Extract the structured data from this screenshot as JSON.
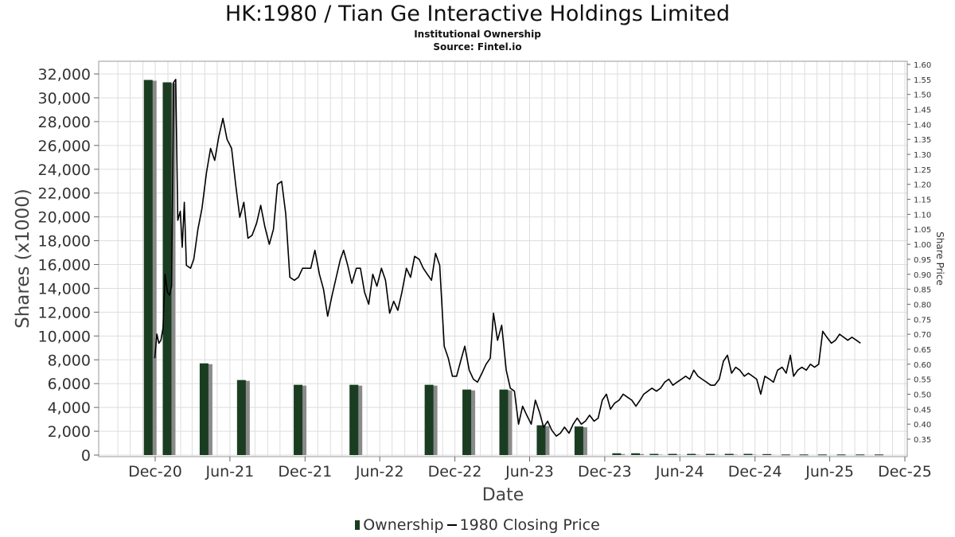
{
  "header": {
    "title": "HK:1980 / Tian Ge Interactive Holdings Limited",
    "subtitle": "Institutional Ownership",
    "source": "Source: Fintel.io"
  },
  "legend": {
    "ownership_label": "Ownership",
    "price_label": "1980 Closing Price"
  },
  "colors": {
    "bar": "#1a3d22",
    "bar_shadow": "#8a8a8a",
    "line": "#000000",
    "grid": "#dddddd"
  },
  "chart_data": {
    "type": "bar+line",
    "xlabel": "Date",
    "ylabel": "Shares (x1000)",
    "y2label": "Share Price",
    "x_ticks": [
      "Dec-20",
      "Jun-21",
      "Dec-21",
      "Jun-22",
      "Dec-22",
      "Jun-23",
      "Dec-23",
      "Jun-24",
      "Dec-24",
      "Jun-25",
      "Dec-25"
    ],
    "ylim": [
      0,
      32000
    ],
    "y_ticks": [
      0,
      2000,
      4000,
      6000,
      8000,
      10000,
      12000,
      14000,
      16000,
      18000,
      20000,
      22000,
      24000,
      26000,
      28000,
      30000,
      32000
    ],
    "y_tick_labels": [
      "0",
      "2,000",
      "4,000",
      "6,000",
      "8,000",
      "10,000",
      "12,000",
      "14,000",
      "16,000",
      "18,000",
      "20,000",
      "22,000",
      "24,000",
      "26,000",
      "28,000",
      "30,000",
      "32,000"
    ],
    "y2lim": [
      0.32,
      1.6
    ],
    "y2_ticks": [
      0.35,
      0.4,
      0.45,
      0.5,
      0.55,
      0.6,
      0.65,
      0.7,
      0.75,
      0.8,
      0.85,
      0.9,
      0.95,
      1.0,
      1.05,
      1.1,
      1.15,
      1.2,
      1.25,
      1.3,
      1.35,
      1.4,
      1.45,
      1.5,
      1.55,
      1.6
    ],
    "y2_tick_labels": [
      "0.35",
      "0.40",
      "0.45",
      "0.50",
      "0.55",
      "0.60",
      "0.65",
      "0.70",
      "0.75",
      "0.80",
      "0.85",
      "0.90",
      "0.95",
      "1.00",
      "1.05",
      "1.10",
      "1.15",
      "1.20",
      "1.25",
      "1.30",
      "1.35",
      "1.40",
      "1.45",
      "1.50",
      "1.55",
      "1.60"
    ],
    "grid": true,
    "legend_position": "bottom-center",
    "series": [
      {
        "name": "Ownership",
        "kind": "bar",
        "points": [
          {
            "date": "2020-11-15",
            "value": 31500
          },
          {
            "date": "2020-12-31",
            "value": 31300
          },
          {
            "date": "2021-03-31",
            "value": 7700
          },
          {
            "date": "2021-06-30",
            "value": 6300
          },
          {
            "date": "2021-11-15",
            "value": 5900
          },
          {
            "date": "2022-03-31",
            "value": 5900
          },
          {
            "date": "2022-09-30",
            "value": 5900
          },
          {
            "date": "2022-12-31",
            "value": 5500
          },
          {
            "date": "2023-03-31",
            "value": 5500
          },
          {
            "date": "2023-06-30",
            "value": 2500
          },
          {
            "date": "2023-09-30",
            "value": 2400
          },
          {
            "date": "2023-12-31",
            "value": 150
          },
          {
            "date": "2024-02-15",
            "value": 150
          },
          {
            "date": "2024-03-31",
            "value": 100
          },
          {
            "date": "2024-05-15",
            "value": 100
          },
          {
            "date": "2024-06-30",
            "value": 100
          },
          {
            "date": "2024-08-15",
            "value": 100
          },
          {
            "date": "2024-09-30",
            "value": 100
          },
          {
            "date": "2024-11-15",
            "value": 100
          },
          {
            "date": "2024-12-31",
            "value": 80
          },
          {
            "date": "2025-02-15",
            "value": 50
          },
          {
            "date": "2025-03-31",
            "value": 50
          },
          {
            "date": "2025-05-15",
            "value": 50
          },
          {
            "date": "2025-06-30",
            "value": 50
          },
          {
            "date": "2025-08-15",
            "value": 50
          },
          {
            "date": "2025-09-30",
            "value": 50
          }
        ]
      },
      {
        "name": "1980 Closing Price",
        "kind": "line",
        "points": [
          {
            "date": "2020-11-30",
            "value": 0.62
          },
          {
            "date": "2020-12-05",
            "value": 0.7
          },
          {
            "date": "2020-12-10",
            "value": 0.67
          },
          {
            "date": "2020-12-15",
            "value": 0.68
          },
          {
            "date": "2020-12-20",
            "value": 0.72
          },
          {
            "date": "2020-12-25",
            "value": 0.9
          },
          {
            "date": "2020-12-31",
            "value": 0.84
          },
          {
            "date": "2021-01-05",
            "value": 0.83
          },
          {
            "date": "2021-01-10",
            "value": 0.86
          },
          {
            "date": "2021-01-15",
            "value": 1.54
          },
          {
            "date": "2021-01-20",
            "value": 1.55
          },
          {
            "date": "2021-01-25",
            "value": 1.08
          },
          {
            "date": "2021-01-31",
            "value": 1.11
          },
          {
            "date": "2021-02-05",
            "value": 0.99
          },
          {
            "date": "2021-02-10",
            "value": 1.14
          },
          {
            "date": "2021-02-15",
            "value": 0.93
          },
          {
            "date": "2021-02-25",
            "value": 0.92
          },
          {
            "date": "2021-03-05",
            "value": 0.95
          },
          {
            "date": "2021-03-15",
            "value": 1.05
          },
          {
            "date": "2021-03-25",
            "value": 1.12
          },
          {
            "date": "2021-04-05",
            "value": 1.24
          },
          {
            "date": "2021-04-15",
            "value": 1.32
          },
          {
            "date": "2021-04-25",
            "value": 1.28
          },
          {
            "date": "2021-05-05",
            "value": 1.36
          },
          {
            "date": "2021-05-15",
            "value": 1.42
          },
          {
            "date": "2021-05-25",
            "value": 1.35
          },
          {
            "date": "2021-06-05",
            "value": 1.32
          },
          {
            "date": "2021-06-15",
            "value": 1.2
          },
          {
            "date": "2021-06-25",
            "value": 1.09
          },
          {
            "date": "2021-07-05",
            "value": 1.14
          },
          {
            "date": "2021-07-15",
            "value": 1.02
          },
          {
            "date": "2021-07-25",
            "value": 1.03
          },
          {
            "date": "2021-08-05",
            "value": 1.07
          },
          {
            "date": "2021-08-15",
            "value": 1.13
          },
          {
            "date": "2021-08-25",
            "value": 1.06
          },
          {
            "date": "2021-09-05",
            "value": 1.0
          },
          {
            "date": "2021-09-15",
            "value": 1.05
          },
          {
            "date": "2021-09-25",
            "value": 1.2
          },
          {
            "date": "2021-10-05",
            "value": 1.21
          },
          {
            "date": "2021-10-15",
            "value": 1.1
          },
          {
            "date": "2021-10-25",
            "value": 0.89
          },
          {
            "date": "2021-11-05",
            "value": 0.88
          },
          {
            "date": "2021-11-15",
            "value": 0.89
          },
          {
            "date": "2021-11-25",
            "value": 0.92
          },
          {
            "date": "2021-12-05",
            "value": 0.92
          },
          {
            "date": "2021-12-15",
            "value": 0.92
          },
          {
            "date": "2021-12-25",
            "value": 0.98
          },
          {
            "date": "2022-01-05",
            "value": 0.9
          },
          {
            "date": "2022-01-15",
            "value": 0.85
          },
          {
            "date": "2022-01-25",
            "value": 0.76
          },
          {
            "date": "2022-02-05",
            "value": 0.83
          },
          {
            "date": "2022-02-15",
            "value": 0.89
          },
          {
            "date": "2022-02-25",
            "value": 0.95
          },
          {
            "date": "2022-03-05",
            "value": 0.98
          },
          {
            "date": "2022-03-15",
            "value": 0.93
          },
          {
            "date": "2022-03-25",
            "value": 0.87
          },
          {
            "date": "2022-04-05",
            "value": 0.92
          },
          {
            "date": "2022-04-15",
            "value": 0.92
          },
          {
            "date": "2022-04-25",
            "value": 0.84
          },
          {
            "date": "2022-05-05",
            "value": 0.8
          },
          {
            "date": "2022-05-15",
            "value": 0.9
          },
          {
            "date": "2022-05-25",
            "value": 0.86
          },
          {
            "date": "2022-06-05",
            "value": 0.92
          },
          {
            "date": "2022-06-15",
            "value": 0.88
          },
          {
            "date": "2022-06-25",
            "value": 0.77
          },
          {
            "date": "2022-07-05",
            "value": 0.81
          },
          {
            "date": "2022-07-15",
            "value": 0.78
          },
          {
            "date": "2022-07-25",
            "value": 0.84
          },
          {
            "date": "2022-08-05",
            "value": 0.92
          },
          {
            "date": "2022-08-15",
            "value": 0.89
          },
          {
            "date": "2022-08-25",
            "value": 0.96
          },
          {
            "date": "2022-09-05",
            "value": 0.95
          },
          {
            "date": "2022-09-15",
            "value": 0.92
          },
          {
            "date": "2022-09-25",
            "value": 0.9
          },
          {
            "date": "2022-10-05",
            "value": 0.88
          },
          {
            "date": "2022-10-15",
            "value": 0.97
          },
          {
            "date": "2022-10-25",
            "value": 0.93
          },
          {
            "date": "2022-11-05",
            "value": 0.66
          },
          {
            "date": "2022-11-15",
            "value": 0.62
          },
          {
            "date": "2022-11-25",
            "value": 0.56
          },
          {
            "date": "2022-12-05",
            "value": 0.56
          },
          {
            "date": "2022-12-15",
            "value": 0.61
          },
          {
            "date": "2022-12-25",
            "value": 0.66
          },
          {
            "date": "2023-01-05",
            "value": 0.58
          },
          {
            "date": "2023-01-15",
            "value": 0.55
          },
          {
            "date": "2023-01-25",
            "value": 0.54
          },
          {
            "date": "2023-02-05",
            "value": 0.57
          },
          {
            "date": "2023-02-15",
            "value": 0.6
          },
          {
            "date": "2023-02-25",
            "value": 0.62
          },
          {
            "date": "2023-03-05",
            "value": 0.77
          },
          {
            "date": "2023-03-15",
            "value": 0.68
          },
          {
            "date": "2023-03-25",
            "value": 0.73
          },
          {
            "date": "2023-04-05",
            "value": 0.58
          },
          {
            "date": "2023-04-15",
            "value": 0.52
          },
          {
            "date": "2023-04-25",
            "value": 0.51
          },
          {
            "date": "2023-05-05",
            "value": 0.4
          },
          {
            "date": "2023-05-15",
            "value": 0.46
          },
          {
            "date": "2023-05-25",
            "value": 0.43
          },
          {
            "date": "2023-06-05",
            "value": 0.4
          },
          {
            "date": "2023-06-15",
            "value": 0.48
          },
          {
            "date": "2023-06-25",
            "value": 0.44
          },
          {
            "date": "2023-07-05",
            "value": 0.39
          },
          {
            "date": "2023-07-15",
            "value": 0.41
          },
          {
            "date": "2023-07-25",
            "value": 0.38
          },
          {
            "date": "2023-08-05",
            "value": 0.36
          },
          {
            "date": "2023-08-15",
            "value": 0.37
          },
          {
            "date": "2023-08-25",
            "value": 0.39
          },
          {
            "date": "2023-09-05",
            "value": 0.37
          },
          {
            "date": "2023-09-15",
            "value": 0.4
          },
          {
            "date": "2023-09-25",
            "value": 0.42
          },
          {
            "date": "2023-10-05",
            "value": 0.4
          },
          {
            "date": "2023-10-15",
            "value": 0.41
          },
          {
            "date": "2023-10-25",
            "value": 0.43
          },
          {
            "date": "2023-11-05",
            "value": 0.41
          },
          {
            "date": "2023-11-15",
            "value": 0.42
          },
          {
            "date": "2023-11-25",
            "value": 0.48
          },
          {
            "date": "2023-12-05",
            "value": 0.5
          },
          {
            "date": "2023-12-15",
            "value": 0.45
          },
          {
            "date": "2023-12-25",
            "value": 0.47
          },
          {
            "date": "2024-01-05",
            "value": 0.48
          },
          {
            "date": "2024-01-15",
            "value": 0.5
          },
          {
            "date": "2024-01-25",
            "value": 0.49
          },
          {
            "date": "2024-02-05",
            "value": 0.48
          },
          {
            "date": "2024-02-15",
            "value": 0.46
          },
          {
            "date": "2024-02-25",
            "value": 0.48
          },
          {
            "date": "2024-03-05",
            "value": 0.5
          },
          {
            "date": "2024-03-15",
            "value": 0.51
          },
          {
            "date": "2024-03-25",
            "value": 0.52
          },
          {
            "date": "2024-04-05",
            "value": 0.51
          },
          {
            "date": "2024-04-15",
            "value": 0.52
          },
          {
            "date": "2024-04-25",
            "value": 0.54
          },
          {
            "date": "2024-05-05",
            "value": 0.55
          },
          {
            "date": "2024-05-15",
            "value": 0.53
          },
          {
            "date": "2024-05-25",
            "value": 0.54
          },
          {
            "date": "2024-06-05",
            "value": 0.55
          },
          {
            "date": "2024-06-15",
            "value": 0.56
          },
          {
            "date": "2024-06-25",
            "value": 0.55
          },
          {
            "date": "2024-07-05",
            "value": 0.58
          },
          {
            "date": "2024-07-15",
            "value": 0.56
          },
          {
            "date": "2024-07-25",
            "value": 0.55
          },
          {
            "date": "2024-08-05",
            "value": 0.54
          },
          {
            "date": "2024-08-15",
            "value": 0.53
          },
          {
            "date": "2024-08-25",
            "value": 0.53
          },
          {
            "date": "2024-09-05",
            "value": 0.55
          },
          {
            "date": "2024-09-15",
            "value": 0.61
          },
          {
            "date": "2024-09-25",
            "value": 0.63
          },
          {
            "date": "2024-10-05",
            "value": 0.57
          },
          {
            "date": "2024-10-15",
            "value": 0.59
          },
          {
            "date": "2024-10-25",
            "value": 0.58
          },
          {
            "date": "2024-11-05",
            "value": 0.56
          },
          {
            "date": "2024-11-15",
            "value": 0.57
          },
          {
            "date": "2024-11-25",
            "value": 0.56
          },
          {
            "date": "2024-12-05",
            "value": 0.55
          },
          {
            "date": "2024-12-15",
            "value": 0.5
          },
          {
            "date": "2024-12-25",
            "value": 0.56
          },
          {
            "date": "2025-01-05",
            "value": 0.55
          },
          {
            "date": "2025-01-15",
            "value": 0.54
          },
          {
            "date": "2025-01-25",
            "value": 0.58
          },
          {
            "date": "2025-02-05",
            "value": 0.59
          },
          {
            "date": "2025-02-15",
            "value": 0.57
          },
          {
            "date": "2025-02-25",
            "value": 0.63
          },
          {
            "date": "2025-03-05",
            "value": 0.56
          },
          {
            "date": "2025-03-15",
            "value": 0.58
          },
          {
            "date": "2025-03-25",
            "value": 0.59
          },
          {
            "date": "2025-04-05",
            "value": 0.58
          },
          {
            "date": "2025-04-15",
            "value": 0.6
          },
          {
            "date": "2025-04-25",
            "value": 0.59
          },
          {
            "date": "2025-05-05",
            "value": 0.6
          },
          {
            "date": "2025-05-15",
            "value": 0.71
          },
          {
            "date": "2025-05-25",
            "value": 0.69
          },
          {
            "date": "2025-06-05",
            "value": 0.67
          },
          {
            "date": "2025-06-15",
            "value": 0.68
          },
          {
            "date": "2025-06-25",
            "value": 0.7
          },
          {
            "date": "2025-07-05",
            "value": 0.69
          },
          {
            "date": "2025-07-15",
            "value": 0.68
          },
          {
            "date": "2025-07-25",
            "value": 0.69
          },
          {
            "date": "2025-08-05",
            "value": 0.68
          },
          {
            "date": "2025-08-15",
            "value": 0.67
          }
        ]
      }
    ]
  }
}
